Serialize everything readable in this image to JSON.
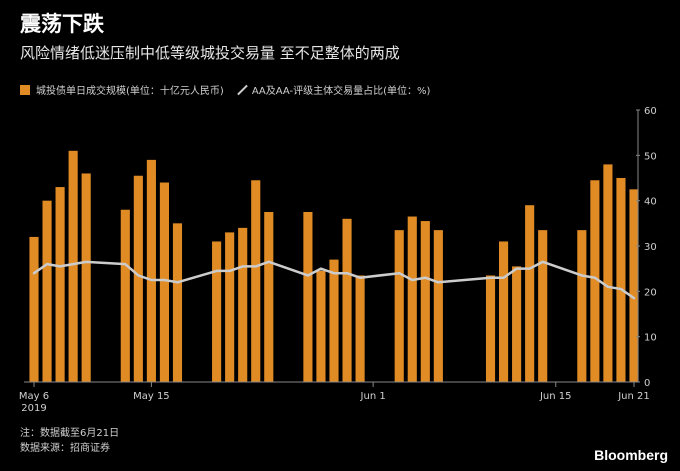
{
  "header": {
    "title": "震荡下跌",
    "subtitle": "风险情绪低迷压制中低等级城投交易量 至不足整体的两成"
  },
  "legend": {
    "bar_label": "城投债单日成交规模(单位：十亿元人民币)",
    "line_label": "AA及AA-评级主体交易量占比(单位：%)"
  },
  "colors": {
    "bar": "#e08b24",
    "line": "#cccccc",
    "axis": "#888888",
    "background": "#000000"
  },
  "chart_data": {
    "type": "bar",
    "categories": [
      "May 6",
      "May 7",
      "May 8",
      "May 9",
      "May 10",
      "May 11",
      "May 12",
      "May 13",
      "May 14",
      "May 15",
      "May 16",
      "May 17",
      "May 18",
      "May 19",
      "May 20",
      "May 21",
      "May 22",
      "May 23",
      "May 24",
      "May 25",
      "May 26",
      "May 27",
      "May 28",
      "May 29",
      "May 30",
      "May 31",
      "Jun 1",
      "Jun 2",
      "Jun 3",
      "Jun 4",
      "Jun 5",
      "Jun 6",
      "Jun 7",
      "Jun 8",
      "Jun 9",
      "Jun 10",
      "Jun 11",
      "Jun 12",
      "Jun 13",
      "Jun 14",
      "Jun 15",
      "Jun 16",
      "Jun 17",
      "Jun 18",
      "Jun 19",
      "Jun 20",
      "Jun 21"
    ],
    "series": [
      {
        "name": "城投债单日成交规模(单位：十亿元人民币)",
        "type": "bar",
        "x": [
          "May 6",
          "May 7",
          "May 8",
          "May 9",
          "May 10",
          "May 13",
          "May 14",
          "May 15",
          "May 16",
          "May 17",
          "May 20",
          "May 21",
          "May 22",
          "May 23",
          "May 24",
          "May 27",
          "May 28",
          "May 29",
          "May 30",
          "May 31",
          "Jun 3",
          "Jun 4",
          "Jun 5",
          "Jun 6",
          "Jun 10",
          "Jun 11",
          "Jun 12",
          "Jun 13",
          "Jun 14",
          "Jun 17",
          "Jun 18",
          "Jun 19",
          "Jun 20",
          "Jun 21"
        ],
        "values": [
          32,
          40,
          43,
          51,
          46,
          38,
          45.5,
          49,
          44,
          35,
          31,
          33,
          34,
          44.5,
          37.5,
          37.5,
          24.5,
          27,
          36,
          23.5,
          33.5,
          36.5,
          35.5,
          33.5,
          23.5,
          31,
          25.5,
          39,
          33.5,
          33.5,
          44.5,
          48,
          45,
          42.5
        ]
      },
      {
        "name": "AA及AA-评级主体交易量占比(单位：%)",
        "type": "line",
        "x": [
          "May 6",
          "May 7",
          "May 8",
          "May 9",
          "May 10",
          "May 13",
          "May 14",
          "May 15",
          "May 16",
          "May 17",
          "May 20",
          "May 21",
          "May 22",
          "May 23",
          "May 24",
          "May 27",
          "May 28",
          "May 29",
          "May 30",
          "May 31",
          "Jun 3",
          "Jun 4",
          "Jun 5",
          "Jun 6",
          "Jun 10",
          "Jun 11",
          "Jun 12",
          "Jun 13",
          "Jun 14",
          "Jun 17",
          "Jun 18",
          "Jun 19",
          "Jun 20",
          "Jun 21"
        ],
        "values": [
          24,
          26,
          25.5,
          26,
          26.5,
          26,
          23.5,
          22.5,
          22.5,
          22,
          24.5,
          24.5,
          25.5,
          25.5,
          26.5,
          23.5,
          25,
          24,
          24,
          23,
          24,
          22.5,
          23,
          22,
          23,
          23,
          25,
          25,
          26.5,
          23.5,
          23,
          21,
          20.5,
          18.5
        ]
      }
    ],
    "ylim": [
      0,
      60
    ],
    "yticks": [
      0,
      10,
      20,
      30,
      40,
      50,
      60
    ],
    "xticks": [
      {
        "x": "May 6",
        "label": "May 6",
        "sub": "2019"
      },
      {
        "x": "May 15",
        "label": "May 15",
        "sub": ""
      },
      {
        "x": "Jun 1",
        "label": "Jun 1",
        "sub": ""
      },
      {
        "x": "Jun 15",
        "label": "Jun 15",
        "sub": ""
      },
      {
        "x": "Jun 21",
        "label": "Jun 21",
        "sub": ""
      }
    ],
    "y_axis_position": "right",
    "grid": false,
    "legend_position": "top-left"
  },
  "footer": {
    "note": "注：数据截至6月21日",
    "source": "数据来源：招商证券",
    "brand": "Bloomberg"
  }
}
